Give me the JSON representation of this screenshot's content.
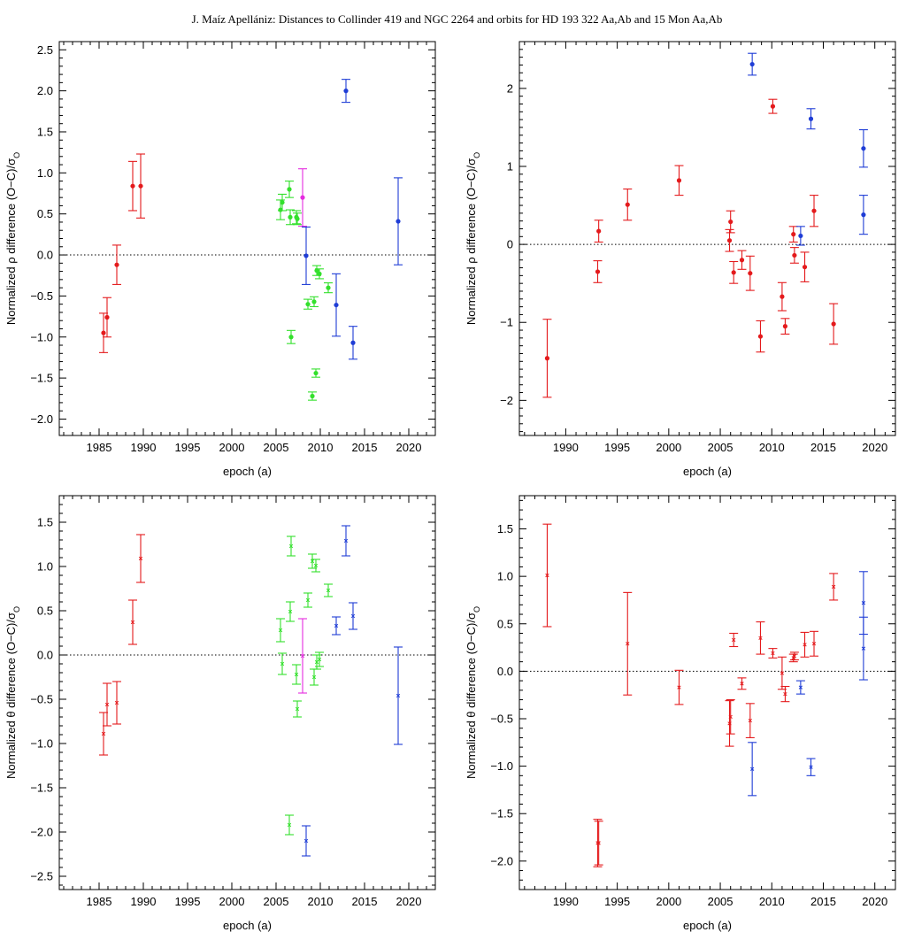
{
  "header": "J. Maíz Apellániz: Distances to Collinder 419 and NGC 2264 and orbits for HD 193 322 Aa,Ab and 15 Mon Aa,Ab",
  "colors": {
    "red": "#e41a1c",
    "green": "#33e02c",
    "blue": "#1f3dd6",
    "magenta": "#e52ce0"
  },
  "chart_data": [
    {
      "type": "scatter",
      "xlabel": "epoch (a)",
      "ylabel": "Normalized ρ difference (O−C)/σ",
      "ylabel_sub": "O",
      "xlim": [
        1980.5,
        2023
      ],
      "ylim": [
        -2.2,
        2.6
      ],
      "xticks": [
        1985,
        1990,
        1995,
        2000,
        2005,
        2010,
        2015,
        2020
      ],
      "yticks": [
        -2.0,
        -1.5,
        -1.0,
        -0.5,
        0.0,
        0.5,
        1.0,
        1.5,
        2.0,
        2.5
      ],
      "ytick_labels": [
        "−2.0",
        "−1.5",
        "−1.0",
        "−0.5",
        "0.0",
        "0.5",
        "1.0",
        "1.5",
        "2.0",
        "2.5"
      ],
      "marker": "dot",
      "series": [
        {
          "color": "red",
          "points": [
            [
              1985.5,
              -0.95,
              0.24
            ],
            [
              1985.9,
              -0.76,
              0.24
            ],
            [
              1987.0,
              -0.12,
              0.24
            ],
            [
              1988.8,
              0.84,
              0.3
            ],
            [
              1989.7,
              0.84,
              0.39
            ]
          ]
        },
        {
          "color": "green",
          "points": [
            [
              2005.5,
              0.55,
              0.12
            ],
            [
              2005.7,
              0.64,
              0.1
            ],
            [
              2006.5,
              0.8,
              0.1
            ],
            [
              2006.6,
              0.46,
              0.09
            ],
            [
              2006.7,
              -1.0,
              0.08
            ],
            [
              2007.3,
              0.46,
              0.08
            ],
            [
              2007.4,
              0.44,
              0.07
            ],
            [
              2008.6,
              -0.6,
              0.06
            ],
            [
              2009.1,
              -1.72,
              0.05
            ],
            [
              2009.3,
              -0.57,
              0.06
            ],
            [
              2009.5,
              -1.44,
              0.05
            ],
            [
              2009.6,
              -0.19,
              0.06
            ],
            [
              2009.9,
              -0.23,
              0.06
            ],
            [
              2010.9,
              -0.4,
              0.06
            ]
          ]
        },
        {
          "color": "magenta",
          "points": [
            [
              2008.0,
              0.7,
              0.35
            ]
          ]
        },
        {
          "color": "blue",
          "points": [
            [
              2008.4,
              -0.01,
              0.35
            ],
            [
              2011.8,
              -0.61,
              0.38
            ],
            [
              2012.9,
              2.0,
              0.14
            ],
            [
              2013.7,
              -1.07,
              0.2
            ],
            [
              2018.8,
              0.41,
              0.53
            ]
          ]
        }
      ]
    },
    {
      "type": "scatter",
      "xlabel": "epoch (a)",
      "ylabel": "Normalized ρ difference (O−C)/σ",
      "ylabel_sub": "O",
      "xlim": [
        1985.5,
        2022
      ],
      "ylim": [
        -2.45,
        2.6
      ],
      "xticks": [
        1990,
        1995,
        2000,
        2005,
        2010,
        2015,
        2020
      ],
      "yticks": [
        -2,
        -1,
        0,
        1,
        2
      ],
      "ytick_labels": [
        "−2",
        "−1",
        "0",
        "1",
        "2"
      ],
      "marker": "dot",
      "series": [
        {
          "color": "red",
          "points": [
            [
              1988.2,
              -1.46,
              0.5
            ],
            [
              1993.1,
              -0.35,
              0.14
            ],
            [
              1993.2,
              0.17,
              0.14
            ],
            [
              1996.0,
              0.51,
              0.2
            ],
            [
              2001.0,
              0.82,
              0.19
            ],
            [
              2005.9,
              0.05,
              0.14
            ],
            [
              2006.0,
              0.29,
              0.14
            ],
            [
              2006.3,
              -0.36,
              0.14
            ],
            [
              2007.1,
              -0.2,
              0.12
            ],
            [
              2007.9,
              -0.37,
              0.22
            ],
            [
              2008.9,
              -1.18,
              0.2
            ],
            [
              2010.1,
              1.77,
              0.09
            ],
            [
              2011.0,
              -0.67,
              0.18
            ],
            [
              2011.3,
              -1.05,
              0.1
            ],
            [
              2012.1,
              0.13,
              0.1
            ],
            [
              2012.2,
              -0.14,
              0.1
            ],
            [
              2013.2,
              -0.29,
              0.19
            ],
            [
              2014.1,
              0.43,
              0.2
            ],
            [
              2016.0,
              -1.02,
              0.26
            ]
          ]
        },
        {
          "color": "blue",
          "points": [
            [
              2008.1,
              2.31,
              0.14
            ],
            [
              2012.8,
              0.11,
              0.12
            ],
            [
              2013.8,
              1.61,
              0.13
            ],
            [
              2018.9,
              1.23,
              0.24
            ],
            [
              2018.9,
              0.38,
              0.25
            ]
          ]
        }
      ]
    },
    {
      "type": "scatter",
      "xlabel": "epoch (a)",
      "ylabel": "Normalized θ difference (O−C)/σ",
      "ylabel_sub": "O",
      "xlim": [
        1980.5,
        2023
      ],
      "ylim": [
        -2.65,
        1.8
      ],
      "xticks": [
        1985,
        1990,
        1995,
        2000,
        2005,
        2010,
        2015,
        2020
      ],
      "yticks": [
        -2.5,
        -2.0,
        -1.5,
        -1.0,
        -0.5,
        0.0,
        0.5,
        1.0,
        1.5
      ],
      "ytick_labels": [
        "−2.5",
        "−2.0",
        "−1.5",
        "−1.0",
        "−0.5",
        "0.0",
        "0.5",
        "1.0",
        "1.5"
      ],
      "marker": "cross",
      "series": [
        {
          "color": "red",
          "points": [
            [
              1985.5,
              -0.89,
              0.24
            ],
            [
              1985.9,
              -0.56,
              0.24
            ],
            [
              1987.0,
              -0.54,
              0.24
            ],
            [
              1988.8,
              0.37,
              0.25
            ],
            [
              1989.7,
              1.09,
              0.27
            ]
          ]
        },
        {
          "color": "green",
          "points": [
            [
              2005.5,
              0.28,
              0.13
            ],
            [
              2005.7,
              -0.1,
              0.12
            ],
            [
              2006.5,
              -1.92,
              0.11
            ],
            [
              2006.6,
              0.49,
              0.11
            ],
            [
              2006.7,
              1.23,
              0.11
            ],
            [
              2007.3,
              -0.22,
              0.11
            ],
            [
              2007.4,
              -0.61,
              0.09
            ],
            [
              2008.6,
              0.62,
              0.08
            ],
            [
              2009.1,
              1.06,
              0.08
            ],
            [
              2009.3,
              -0.25,
              0.09
            ],
            [
              2009.5,
              1.01,
              0.07
            ],
            [
              2009.6,
              -0.08,
              0.08
            ],
            [
              2009.9,
              -0.05,
              0.08
            ],
            [
              2010.9,
              0.73,
              0.07
            ]
          ]
        },
        {
          "color": "magenta",
          "points": [
            [
              2008.0,
              -0.01,
              0.42
            ]
          ]
        },
        {
          "color": "blue",
          "points": [
            [
              2008.4,
              -2.1,
              0.17
            ],
            [
              2011.8,
              0.33,
              0.1
            ],
            [
              2012.9,
              1.29,
              0.17
            ],
            [
              2013.7,
              0.44,
              0.15
            ],
            [
              2018.8,
              -0.46,
              0.55
            ]
          ]
        }
      ]
    },
    {
      "type": "scatter",
      "xlabel": "epoch (a)",
      "ylabel": "Normalized θ difference (O−C)/σ",
      "ylabel_sub": "O",
      "xlim": [
        1985.5,
        2022
      ],
      "ylim": [
        -2.3,
        1.85
      ],
      "xticks": [
        1990,
        1995,
        2000,
        2005,
        2010,
        2015,
        2020
      ],
      "yticks": [
        -2.0,
        -1.5,
        -1.0,
        -0.5,
        0.0,
        0.5,
        1.0,
        1.5
      ],
      "ytick_labels": [
        "−2.0",
        "−1.5",
        "−1.0",
        "−0.5",
        "0.0",
        "0.5",
        "1.0",
        "1.5"
      ],
      "marker": "cross",
      "series": [
        {
          "color": "red",
          "points": [
            [
              1988.2,
              1.01,
              0.54
            ],
            [
              1993.1,
              -1.81,
              0.25
            ],
            [
              1993.2,
              -1.81,
              0.23
            ],
            [
              1996.0,
              0.29,
              0.54
            ],
            [
              2001.0,
              -0.17,
              0.18
            ],
            [
              2005.9,
              -0.55,
              0.24
            ],
            [
              2006.0,
              -0.48,
              0.18
            ],
            [
              2006.3,
              0.33,
              0.07
            ],
            [
              2007.1,
              -0.13,
              0.06
            ],
            [
              2007.9,
              -0.52,
              0.18
            ],
            [
              2008.9,
              0.35,
              0.17
            ],
            [
              2010.1,
              0.19,
              0.05
            ],
            [
              2011.0,
              -0.02,
              0.17
            ],
            [
              2011.3,
              -0.24,
              0.08
            ],
            [
              2012.1,
              0.14,
              0.04
            ],
            [
              2012.2,
              0.16,
              0.04
            ],
            [
              2013.2,
              0.28,
              0.13
            ],
            [
              2014.1,
              0.29,
              0.13
            ],
            [
              2016.0,
              0.89,
              0.14
            ]
          ]
        },
        {
          "color": "blue",
          "points": [
            [
              2008.1,
              -1.03,
              0.28
            ],
            [
              2012.8,
              -0.17,
              0.07
            ],
            [
              2013.8,
              -1.01,
              0.09
            ],
            [
              2018.9,
              0.24,
              0.33
            ],
            [
              2018.9,
              0.72,
              0.33
            ]
          ]
        }
      ]
    }
  ]
}
